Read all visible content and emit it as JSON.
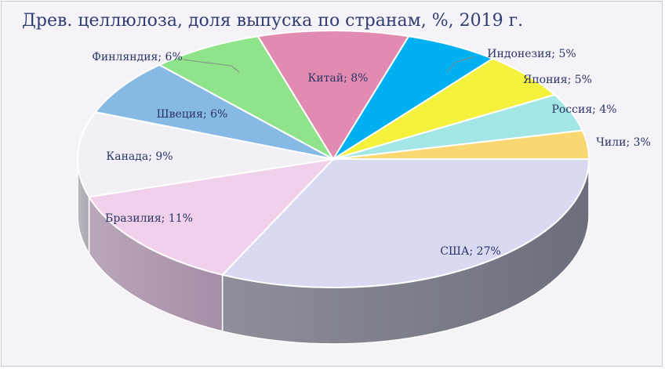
{
  "chart_data": {
    "type": "pie",
    "title": "Древ. целлюлоза, доля выпуска по странам, %, 2019 г.",
    "slices": [
      {
        "name": "США",
        "value": 27,
        "label": "США; 27%",
        "color": "#d9daf2",
        "side_color": "#6d6e7c"
      },
      {
        "name": "Бразилия",
        "value": 11,
        "label": "Бразилия; 11%",
        "color": "#f0d0ea",
        "side_color": "#a68ea6"
      },
      {
        "name": "Канада",
        "value": 9,
        "label": "Канада; 9%",
        "color": "#f3eff6",
        "side_color": "#aaa6b0"
      },
      {
        "name": "Швеция",
        "value": 6,
        "label": "Швеция; 6%",
        "color": "#86b9e3",
        "side_color": "#5f84a3"
      },
      {
        "name": "Финляндия",
        "value": 6,
        "label": "Финляндия; 6%",
        "color": "#8fe38a",
        "side_color": "#62a05f"
      },
      {
        "name": "Китай",
        "value": 8,
        "label": "Китай; 8%",
        "color": "#e18bb0",
        "side_color": "#a3657f"
      },
      {
        "name": "Индонезия",
        "value": 5,
        "label": "Индонезия; 5%",
        "color": "#00b0f0",
        "side_color": "#0078a8"
      },
      {
        "name": "Япония",
        "value": 5,
        "label": "Япония; 5%",
        "color": "#f4f23c",
        "side_color": "#a9a72a"
      },
      {
        "name": "Россия",
        "value": 4,
        "label": "Россия; 4%",
        "color": "#a3e6e6",
        "side_color": "#73a3a3"
      },
      {
        "name": "Чили",
        "value": 3,
        "label": "Чили; 3%",
        "color": "#f9d873",
        "side_color": "#b09a52"
      }
    ]
  }
}
